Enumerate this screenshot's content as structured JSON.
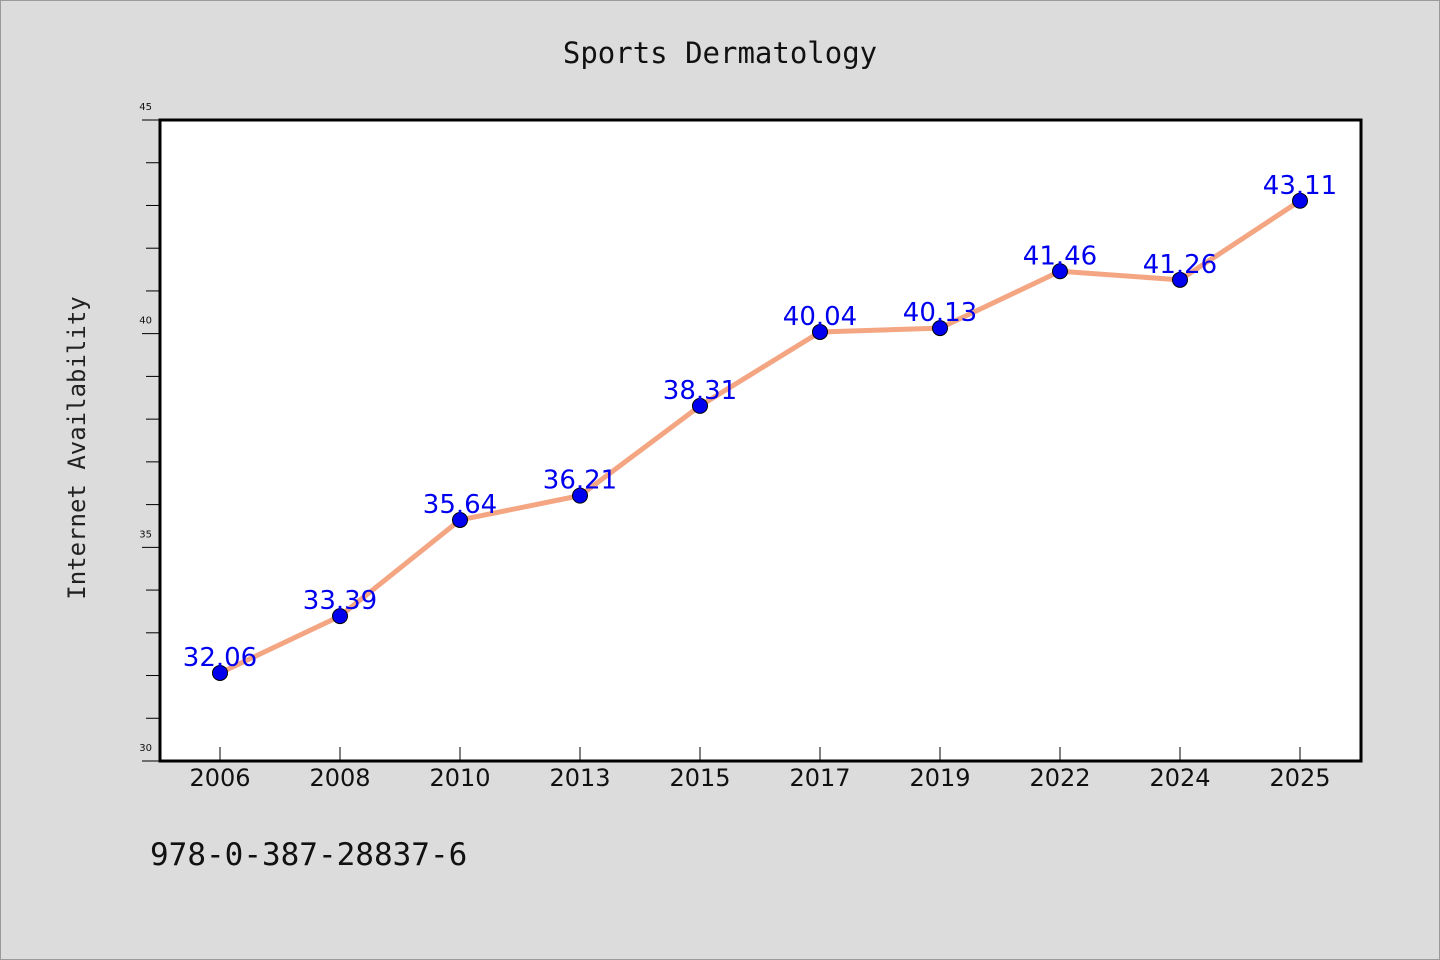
{
  "chart_data": {
    "type": "line",
    "title": "Sports Dermatology",
    "xlabel": "",
    "ylabel": "Internet Availability",
    "categories": [
      "2006",
      "2008",
      "2010",
      "2013",
      "2015",
      "2017",
      "2019",
      "2022",
      "2024",
      "2025"
    ],
    "series": [
      {
        "values": [
          32.06,
          33.39,
          35.64,
          36.21,
          38.31,
          40.04,
          40.13,
          41.46,
          41.26,
          43.11
        ],
        "labels": [
          "32.06",
          "33.39",
          "35.64",
          "36.21",
          "38.31",
          "40.04",
          "40.13",
          "41.46",
          "41.26",
          "43.11"
        ],
        "line_color": "#f4a582",
        "marker_color": "#0000ee",
        "label_color": "#0000ee"
      }
    ],
    "ylim": [
      30,
      45
    ],
    "yticks": [
      "30",
      "35",
      "40",
      "45"
    ],
    "grid": false,
    "legend": "none"
  },
  "footer": {
    "isbn": "978-0-387-28837-6"
  },
  "colors": {
    "page_background": "#dcdcdc",
    "plot_background": "#ffffff",
    "axis": "#000000"
  }
}
